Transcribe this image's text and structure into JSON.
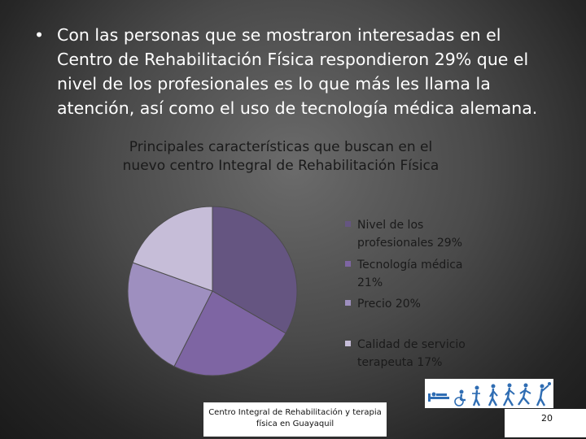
{
  "slide": {
    "bullet_symbol": "•",
    "bullet_text": "Con las personas que se mostraron interesadas en el Centro de Rehabilitación Física respondieron 29% que el nivel de los profesionales es lo que más les llama la atención, así como el uso de tecnología médica alemana.",
    "footer_text": "Centro Integral de Rehabilitación y terapia física en Guayaquil",
    "page_number": "20",
    "logo_icon": "rehabilitation-figures-icon"
  },
  "chart_data": {
    "type": "pie",
    "title": "Principales características que buscan en el nuevo centro Integral de Rehabilitación Física",
    "legend_position": "right",
    "start_angle_deg": 0,
    "direction": "clockwise",
    "slices": [
      {
        "label": "Nivel de los profesionales 29%",
        "value": 29,
        "color": "#655581"
      },
      {
        "label": "Tecnología médica 21%",
        "value": 21,
        "color": "#7e65a3"
      },
      {
        "label": "Precio 20%",
        "value": 20,
        "color": "#9e8fbf"
      },
      {
        "label": "Calidad de servicio terapeuta 17%",
        "value": 17,
        "color": "#c6bdd8"
      }
    ]
  }
}
